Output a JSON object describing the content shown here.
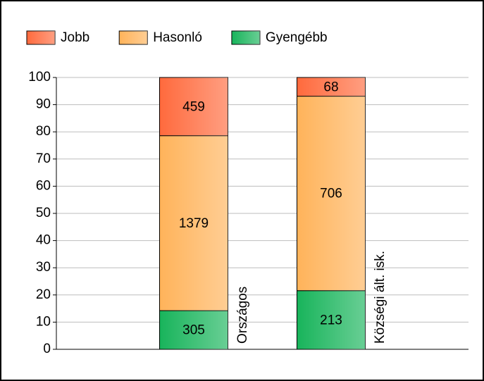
{
  "chart_data": {
    "type": "bar_percent",
    "categories": [
      "Országos",
      "Községi ált. isk."
    ],
    "series": [
      {
        "name": "Jobb",
        "color": "#ff6a3d",
        "values": [
          459,
          68
        ]
      },
      {
        "name": "Hasonló",
        "color": "#ffb35a",
        "values": [
          1379,
          706
        ]
      },
      {
        "name": "Gyengébb",
        "color": "#18b45b",
        "values": [
          305,
          213
        ]
      }
    ],
    "ylim": [
      0,
      100
    ],
    "yticks": [
      0,
      10,
      20,
      30,
      40,
      50,
      60,
      70,
      80,
      90,
      100
    ],
    "grid": true
  }
}
